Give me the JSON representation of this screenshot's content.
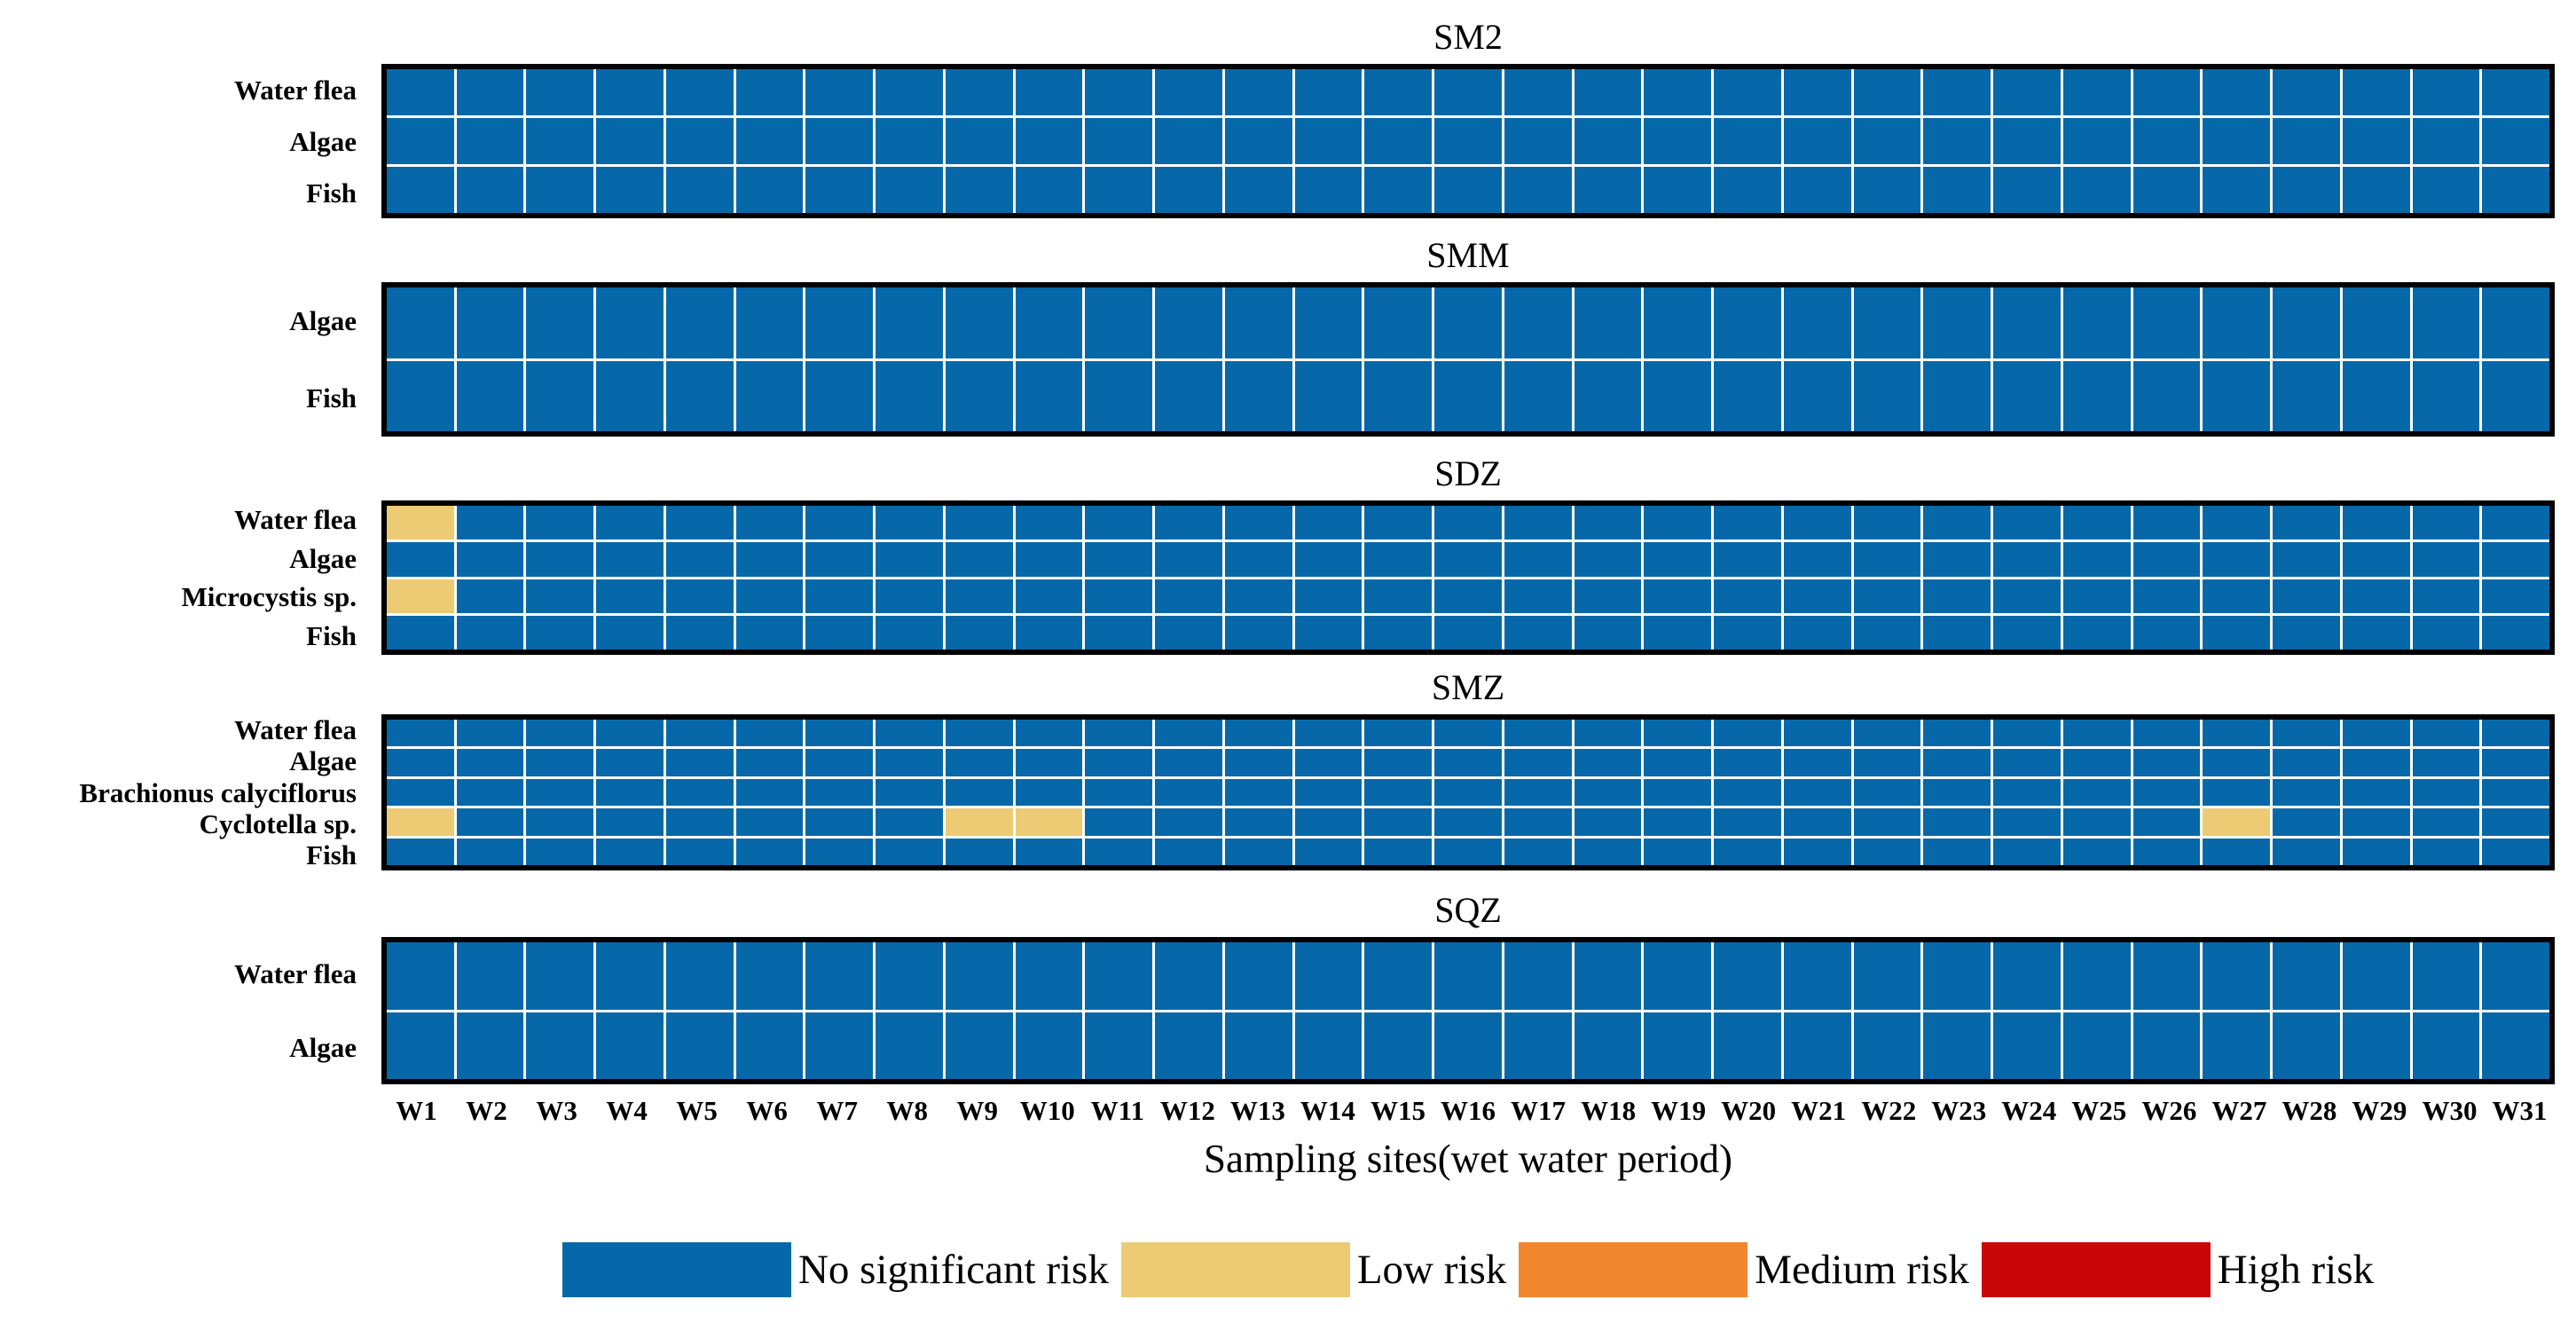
{
  "figure": {
    "xlabel": "Sampling sites(wet water period)",
    "x_ticks": [
      "W1",
      "W2",
      "W3",
      "W4",
      "W5",
      "W6",
      "W7",
      "W8",
      "W9",
      "W10",
      "W11",
      "W12",
      "W13",
      "W14",
      "W15",
      "W16",
      "W17",
      "W18",
      "W19",
      "W20",
      "W21",
      "W22",
      "W23",
      "W24",
      "W25",
      "W26",
      "W27",
      "W28",
      "W29",
      "W30",
      "W31"
    ]
  },
  "colors": {
    "no_significant_risk": "#0768a9",
    "low_risk": "#eccb74",
    "medium_risk": "#f0862d",
    "high_risk": "#c90709",
    "gridline": "#ffffff",
    "panel_border": "#000000"
  },
  "legend": {
    "entries": [
      {
        "label": "No significant risk",
        "color_key": "no_significant_risk"
      },
      {
        "label": "Low risk",
        "color_key": "low_risk"
      },
      {
        "label": "Medium risk",
        "color_key": "medium_risk"
      },
      {
        "label": "High risk",
        "color_key": "high_risk"
      }
    ]
  },
  "chart_data": {
    "type": "heatmap",
    "x_categories": [
      "W1",
      "W2",
      "W3",
      "W4",
      "W5",
      "W6",
      "W7",
      "W8",
      "W9",
      "W10",
      "W11",
      "W12",
      "W13",
      "W14",
      "W15",
      "W16",
      "W17",
      "W18",
      "W19",
      "W20",
      "W21",
      "W22",
      "W23",
      "W24",
      "W25",
      "W26",
      "W27",
      "W28",
      "W29",
      "W30",
      "W31"
    ],
    "xlabel": "Sampling sites(wet water period)",
    "value_meaning": {
      "0": "No significant risk",
      "1": "Low risk",
      "2": "Medium risk",
      "3": "High risk"
    },
    "legend_position": "bottom",
    "grid": true,
    "panels": [
      {
        "title": "SM2",
        "rows": [
          "Water flea",
          "Algae",
          "Fish"
        ],
        "values": [
          [
            0,
            0,
            0,
            0,
            0,
            0,
            0,
            0,
            0,
            0,
            0,
            0,
            0,
            0,
            0,
            0,
            0,
            0,
            0,
            0,
            0,
            0,
            0,
            0,
            0,
            0,
            0,
            0,
            0,
            0,
            0
          ],
          [
            0,
            0,
            0,
            0,
            0,
            0,
            0,
            0,
            0,
            0,
            0,
            0,
            0,
            0,
            0,
            0,
            0,
            0,
            0,
            0,
            0,
            0,
            0,
            0,
            0,
            0,
            0,
            0,
            0,
            0,
            0
          ],
          [
            0,
            0,
            0,
            0,
            0,
            0,
            0,
            0,
            0,
            0,
            0,
            0,
            0,
            0,
            0,
            0,
            0,
            0,
            0,
            0,
            0,
            0,
            0,
            0,
            0,
            0,
            0,
            0,
            0,
            0,
            0
          ]
        ],
        "low_risk_cells": []
      },
      {
        "title": "SMM",
        "rows": [
          "Algae",
          "Fish"
        ],
        "values": [
          [
            0,
            0,
            0,
            0,
            0,
            0,
            0,
            0,
            0,
            0,
            0,
            0,
            0,
            0,
            0,
            0,
            0,
            0,
            0,
            0,
            0,
            0,
            0,
            0,
            0,
            0,
            0,
            0,
            0,
            0,
            0
          ],
          [
            0,
            0,
            0,
            0,
            0,
            0,
            0,
            0,
            0,
            0,
            0,
            0,
            0,
            0,
            0,
            0,
            0,
            0,
            0,
            0,
            0,
            0,
            0,
            0,
            0,
            0,
            0,
            0,
            0,
            0,
            0
          ]
        ],
        "low_risk_cells": []
      },
      {
        "title": "SDZ",
        "rows": [
          "Water flea",
          "Algae",
          "Microcystis sp.",
          "Fish"
        ],
        "values": [
          [
            1,
            0,
            0,
            0,
            0,
            0,
            0,
            0,
            0,
            0,
            0,
            0,
            0,
            0,
            0,
            0,
            0,
            0,
            0,
            0,
            0,
            0,
            0,
            0,
            0,
            0,
            0,
            0,
            0,
            0,
            0
          ],
          [
            0,
            0,
            0,
            0,
            0,
            0,
            0,
            0,
            0,
            0,
            0,
            0,
            0,
            0,
            0,
            0,
            0,
            0,
            0,
            0,
            0,
            0,
            0,
            0,
            0,
            0,
            0,
            0,
            0,
            0,
            0
          ],
          [
            1,
            0,
            0,
            0,
            0,
            0,
            0,
            0,
            0,
            0,
            0,
            0,
            0,
            0,
            0,
            0,
            0,
            0,
            0,
            0,
            0,
            0,
            0,
            0,
            0,
            0,
            0,
            0,
            0,
            0,
            0
          ],
          [
            0,
            0,
            0,
            0,
            0,
            0,
            0,
            0,
            0,
            0,
            0,
            0,
            0,
            0,
            0,
            0,
            0,
            0,
            0,
            0,
            0,
            0,
            0,
            0,
            0,
            0,
            0,
            0,
            0,
            0,
            0
          ]
        ],
        "low_risk_cells": [
          [
            "Water flea",
            "W1"
          ],
          [
            "Microcystis sp.",
            "W1"
          ]
        ]
      },
      {
        "title": "SMZ",
        "rows": [
          "Water flea",
          "Algae",
          "Brachionus calyciflorus",
          "Cyclotella sp.",
          "Fish"
        ],
        "values": [
          [
            0,
            0,
            0,
            0,
            0,
            0,
            0,
            0,
            0,
            0,
            0,
            0,
            0,
            0,
            0,
            0,
            0,
            0,
            0,
            0,
            0,
            0,
            0,
            0,
            0,
            0,
            0,
            0,
            0,
            0,
            0
          ],
          [
            0,
            0,
            0,
            0,
            0,
            0,
            0,
            0,
            0,
            0,
            0,
            0,
            0,
            0,
            0,
            0,
            0,
            0,
            0,
            0,
            0,
            0,
            0,
            0,
            0,
            0,
            0,
            0,
            0,
            0,
            0
          ],
          [
            0,
            0,
            0,
            0,
            0,
            0,
            0,
            0,
            0,
            0,
            0,
            0,
            0,
            0,
            0,
            0,
            0,
            0,
            0,
            0,
            0,
            0,
            0,
            0,
            0,
            0,
            0,
            0,
            0,
            0,
            0
          ],
          [
            1,
            0,
            0,
            0,
            0,
            0,
            0,
            0,
            1,
            1,
            0,
            0,
            0,
            0,
            0,
            0,
            0,
            0,
            0,
            0,
            0,
            0,
            0,
            0,
            0,
            0,
            1,
            0,
            0,
            0,
            0
          ],
          [
            0,
            0,
            0,
            0,
            0,
            0,
            0,
            0,
            0,
            0,
            0,
            0,
            0,
            0,
            0,
            0,
            0,
            0,
            0,
            0,
            0,
            0,
            0,
            0,
            0,
            0,
            0,
            0,
            0,
            0,
            0
          ]
        ],
        "low_risk_cells": [
          [
            "Cyclotella sp.",
            "W1"
          ],
          [
            "Cyclotella sp.",
            "W9"
          ],
          [
            "Cyclotella sp.",
            "W10"
          ],
          [
            "Cyclotella sp.",
            "W27"
          ]
        ]
      },
      {
        "title": "SQZ",
        "rows": [
          "Water flea",
          "Algae"
        ],
        "values": [
          [
            0,
            0,
            0,
            0,
            0,
            0,
            0,
            0,
            0,
            0,
            0,
            0,
            0,
            0,
            0,
            0,
            0,
            0,
            0,
            0,
            0,
            0,
            0,
            0,
            0,
            0,
            0,
            0,
            0,
            0,
            0
          ],
          [
            0,
            0,
            0,
            0,
            0,
            0,
            0,
            0,
            0,
            0,
            0,
            0,
            0,
            0,
            0,
            0,
            0,
            0,
            0,
            0,
            0,
            0,
            0,
            0,
            0,
            0,
            0,
            0,
            0,
            0,
            0
          ]
        ],
        "low_risk_cells": []
      }
    ]
  }
}
